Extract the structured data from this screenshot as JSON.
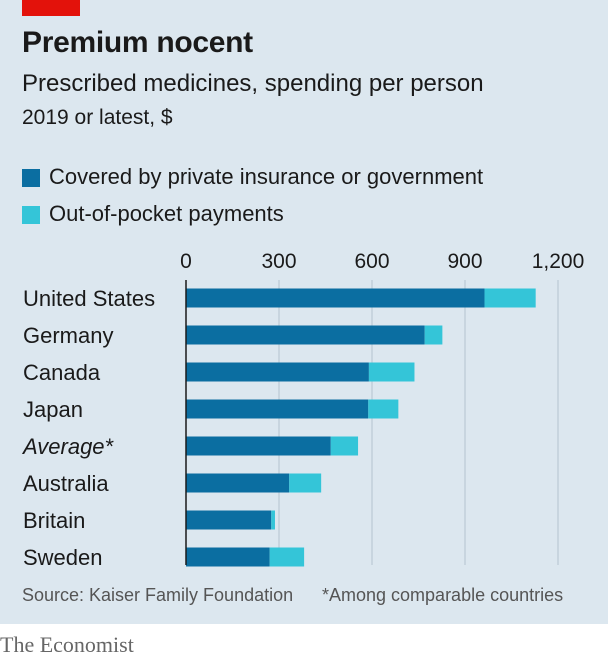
{
  "header": {
    "title": "Premium nocent",
    "subtitle": "Prescribed medicines, spending per person",
    "unit": "2019 or latest, $"
  },
  "legend": {
    "covered": {
      "label": "Covered by private insurance or government",
      "color": "#0b6ea1"
    },
    "oop": {
      "label": "Out-of-pocket payments",
      "color": "#34c5d8"
    }
  },
  "chart_data": {
    "type": "bar",
    "orientation": "horizontal",
    "stacked": true,
    "categories": [
      "United States",
      "Germany",
      "Canada",
      "Japan",
      "Average*",
      "Australia",
      "Britain",
      "Sweden"
    ],
    "italic_categories": [
      "Average*"
    ],
    "series": [
      {
        "name": "Covered by private insurance or government",
        "color": "#0b6ea1",
        "values": [
          963,
          770,
          590,
          588,
          467,
          333,
          275,
          270
        ]
      },
      {
        "name": "Out-of-pocket payments",
        "color": "#34c5d8",
        "values": [
          165,
          57,
          147,
          97,
          88,
          103,
          12,
          111
        ]
      }
    ],
    "x_ticks": [
      0,
      300,
      600,
      900,
      1200
    ],
    "x_tick_labels": [
      "0",
      "300",
      "600",
      "900",
      "1,200"
    ],
    "xlim": [
      0,
      1200
    ],
    "grid": true,
    "legend_position": "top-left"
  },
  "footer": {
    "source": "Source: Kaiser Family Foundation",
    "note": "*Among comparable countries"
  },
  "brand": "The Economist"
}
